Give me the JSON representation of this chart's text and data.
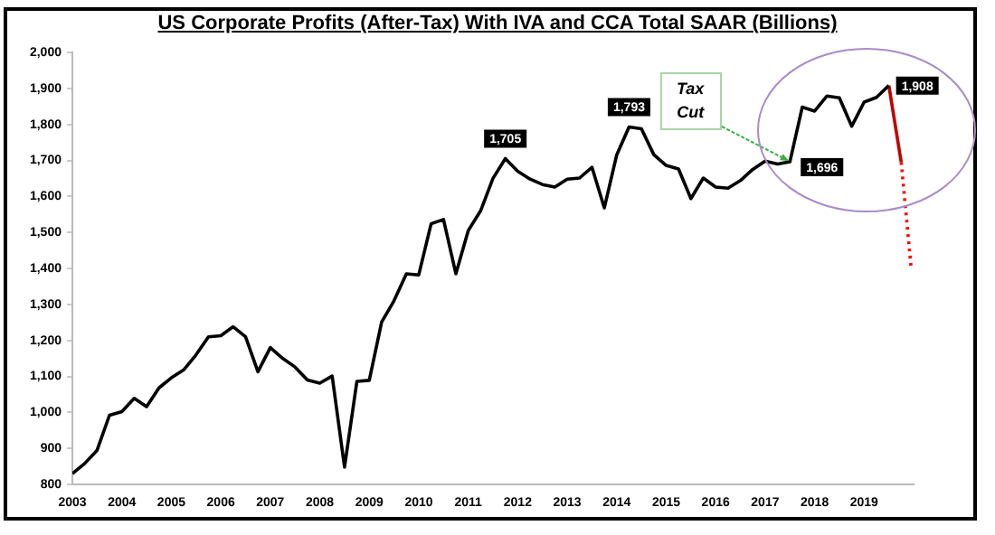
{
  "chart_data": {
    "type": "line",
    "title": "US Corporate Profits (After-Tax) With IVA and CCA Total SAAR (Billions)",
    "xlim": [
      2003,
      2020
    ],
    "xticks": [
      2003,
      2004,
      2005,
      2006,
      2007,
      2008,
      2009,
      2010,
      2011,
      2012,
      2013,
      2014,
      2015,
      2016,
      2017,
      2018,
      2019
    ],
    "ylim": [
      800,
      2000
    ],
    "yticks": [
      800,
      900,
      {
        "value": 1000,
        "label": "1,000"
      },
      {
        "value": 1100,
        "label": "1,100"
      },
      {
        "value": 1200,
        "label": "1,200"
      },
      {
        "value": 1300,
        "label": "1,300"
      },
      {
        "value": 1400,
        "label": "1,400"
      },
      {
        "value": 1500,
        "label": "1,500"
      },
      {
        "value": 1600,
        "label": "1,600"
      },
      {
        "value": 1700,
        "label": "1,700"
      },
      {
        "value": 1800,
        "label": "1,800"
      },
      {
        "value": 1900,
        "label": "1,900"
      },
      {
        "value": 2000,
        "label": "2,000"
      }
    ],
    "grid": false,
    "legend": false,
    "marker": "none",
    "series": [
      {
        "color": "#000000",
        "line_style": "solid",
        "x": [
          2003,
          2003.25,
          2003.5,
          2003.75,
          2004,
          2004.25,
          2004.5,
          2004.75,
          2005,
          2005.25,
          2005.5,
          2005.75,
          2006,
          2006.25,
          2006.5,
          2006.75,
          2007,
          2007.25,
          2007.5,
          2007.75,
          2008,
          2008.25,
          2008.5,
          2008.75,
          2009,
          2009.25,
          2009.5,
          2009.75,
          2010,
          2010.25,
          2010.5,
          2010.75,
          2011,
          2011.25,
          2011.5,
          2011.75,
          2012,
          2012.25,
          2012.5,
          2012.75,
          2013,
          2013.25,
          2013.5,
          2013.75,
          2014,
          2014.25,
          2014.5,
          2014.75,
          2015,
          2015.25,
          2015.5,
          2015.75,
          2016,
          2016.25,
          2016.5,
          2016.75,
          2017,
          2017.25,
          2017.5,
          2017.75,
          2018,
          2018.25,
          2018.5,
          2018.75,
          2019,
          2019.25,
          2019.5
        ],
        "values": [
          830,
          858,
          895,
          992,
          1002,
          1039,
          1016,
          1068,
          1096,
          1118,
          1160,
          1210,
          1213,
          1238,
          1210,
          1113,
          1180,
          1150,
          1126,
          1090,
          1081,
          1101,
          848,
          1086,
          1089,
          1251,
          1310,
          1385,
          1382,
          1524,
          1536,
          1385,
          1505,
          1560,
          1650,
          1705,
          1670,
          1648,
          1633,
          1626,
          1648,
          1651,
          1681,
          1568,
          1715,
          1793,
          1788,
          1716,
          1686,
          1676,
          1594,
          1651,
          1626,
          1623,
          1644,
          1675,
          1698,
          1690,
          1696,
          1848,
          1837,
          1879,
          1874,
          1795,
          1862,
          1875,
          1908
        ],
        "value_labels": [
          null,
          null,
          null,
          null,
          null,
          null,
          null,
          null,
          null,
          null,
          null,
          null,
          null,
          null,
          null,
          null,
          null,
          null,
          null,
          null,
          null,
          null,
          null,
          null,
          null,
          null,
          null,
          null,
          null,
          null,
          null,
          null,
          null,
          null,
          null,
          "1,705",
          null,
          null,
          null,
          null,
          null,
          null,
          null,
          null,
          null,
          "1,793",
          null,
          null,
          null,
          null,
          null,
          null,
          null,
          null,
          null,
          null,
          null,
          null,
          "1,696",
          null,
          null,
          null,
          null,
          null,
          null,
          null,
          "1,908"
        ]
      },
      {
        "color": "#c00000",
        "line_style": "solid",
        "x": [
          2019.5,
          2019.75
        ],
        "values": [
          1908,
          1695
        ]
      },
      {
        "color": "#ff0000",
        "line_style": "dotted",
        "x": [
          2019.75,
          2019.95
        ],
        "values": [
          1695,
          1402
        ]
      }
    ],
    "annotations": [
      {
        "text": "Tax Cut",
        "x": 2017.5,
        "y": 1696
      }
    ]
  }
}
